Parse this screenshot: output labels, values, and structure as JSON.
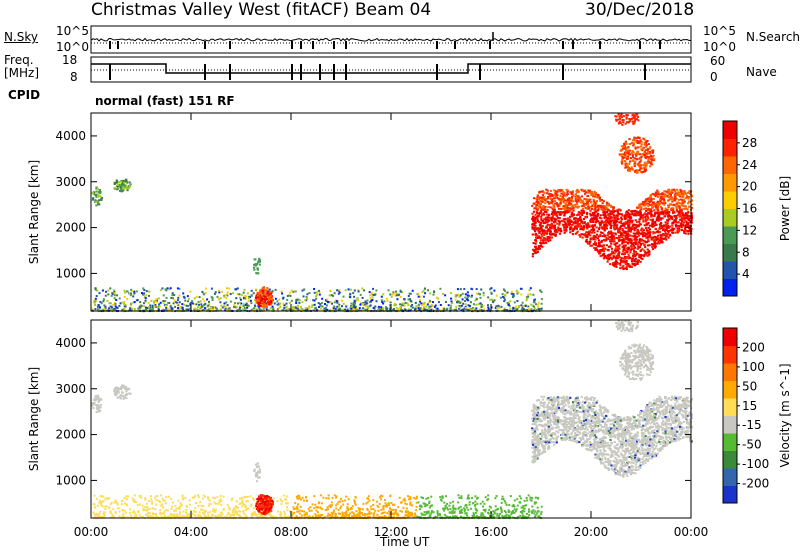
{
  "header": {
    "station": "Christmas Valley West (fitACF)",
    "beam": "Beam 04",
    "date": "30/Dec/2018"
  },
  "left_labels": {
    "nsky": "N.Sky",
    "nsky_ticks": [
      "10^5",
      "10^0"
    ],
    "freq": "Freq.",
    "freq_unit": "[MHz]",
    "freq_ticks": [
      "18",
      "8"
    ],
    "cpid": "CPID"
  },
  "right_labels": {
    "nsearch": "N.Search",
    "nsearch_ticks": [
      "10^5",
      "10^0"
    ],
    "nave": "Nave",
    "nave_ticks": [
      "60",
      "0"
    ]
  },
  "cpid_text": "normal (fast) 151 RF",
  "colors": {
    "power": [
      "#0022ee",
      "#2255aa",
      "#3a7a4a",
      "#4a9a55",
      "#aacc22",
      "#ffcc00",
      "#ff9900",
      "#ff6600",
      "#ff2200",
      "#ee0000"
    ],
    "velocity": [
      "#1a33cc",
      "#3366aa",
      "#3a8a3a",
      "#55bb33",
      "#c8c8c0",
      "#ffdd55",
      "#ffaa00",
      "#ff7700",
      "#ff3300",
      "#ee0000"
    ]
  },
  "chart_data": [
    {
      "type": "heatmap",
      "name": "power",
      "ylabel": "Slant Range [km]",
      "yticks": [
        "4000",
        "3000",
        "2000",
        "1000"
      ],
      "ylim": [
        180,
        4500
      ],
      "xlim": [
        0,
        24
      ],
      "colorbar_label": "Power [dB]",
      "colorbar_ticks": [
        "28",
        "24",
        "20",
        "16",
        "12",
        "8",
        "4"
      ],
      "colorbar_range": [
        0,
        32
      ]
    },
    {
      "type": "heatmap",
      "name": "velocity",
      "ylabel": "Slant Range [km]",
      "yticks": [
        "4000",
        "3000",
        "2000",
        "1000"
      ],
      "ylim": [
        180,
        4500
      ],
      "xlim": [
        0,
        24
      ],
      "colorbar_label": "Velocity [m s^-1]",
      "colorbar_ticks": [
        "200",
        "100",
        "50",
        "15",
        "-15",
        "-50",
        "-100",
        "-200"
      ],
      "xlabel": "Time UT",
      "xticks": [
        "00:00",
        "04:00",
        "08:00",
        "12:00",
        "16:00",
        "20:00",
        "00:00"
      ]
    }
  ]
}
